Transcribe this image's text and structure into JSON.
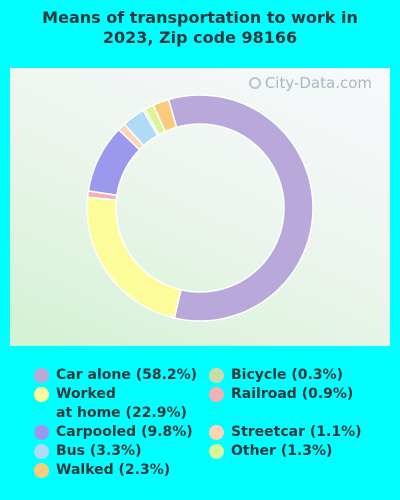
{
  "chart_data": {
    "type": "pie",
    "title": "Means of transportation to work in 2023, Zip code 98166",
    "title_lines": [
      "Means of transportation to work in",
      "2023, Zip code 98166"
    ],
    "watermark": "City-Data.com",
    "legend_position": "bottom",
    "slices": [
      {
        "label": "Car alone (58.2%)",
        "value": 58.2,
        "color": "#b9a9da"
      },
      {
        "label": "Worked\nat home (22.9%)",
        "value": 22.9,
        "color": "#fdfc9b"
      },
      {
        "label": "Railroad (0.9%)",
        "value": 0.9,
        "color": "#f2b1b5"
      },
      {
        "label": "Carpooled (9.8%)",
        "value": 9.8,
        "color": "#9b98ee"
      },
      {
        "label": "Streetcar (1.1%)",
        "value": 1.1,
        "color": "#fbd4b4"
      },
      {
        "label": "Bus (3.3%)",
        "value": 3.3,
        "color": "#aedcf7"
      },
      {
        "label": "Bicycle (0.3%)",
        "value": 0.3,
        "color": "#c9dcaa"
      },
      {
        "label": "Other (1.3%)",
        "value": 1.3,
        "color": "#d8f597"
      },
      {
        "label": "Walked (2.3%)",
        "value": 2.3,
        "color": "#fbcb7c"
      }
    ],
    "legend_left": [
      {
        "label": "Car alone (58.2%)",
        "color": "#b9a9da"
      },
      {
        "label": "Worked\nat home (22.9%)",
        "color": "#fdfc9b"
      },
      {
        "label": "Carpooled (9.8%)",
        "color": "#9b98ee"
      },
      {
        "label": "Bus (3.3%)",
        "color": "#aedcf7"
      },
      {
        "label": "Walked (2.3%)",
        "color": "#fbcb7c"
      }
    ],
    "legend_right": [
      {
        "label": "Bicycle (0.3%)",
        "color": "#c9dcaa"
      },
      {
        "label": "Railroad (0.9%)",
        "color": "#f2b1b5"
      },
      {
        "label": "Streetcar (1.1%)",
        "color": "#fbd4b4"
      },
      {
        "label": "Other (1.3%)",
        "color": "#d8f597"
      }
    ]
  }
}
